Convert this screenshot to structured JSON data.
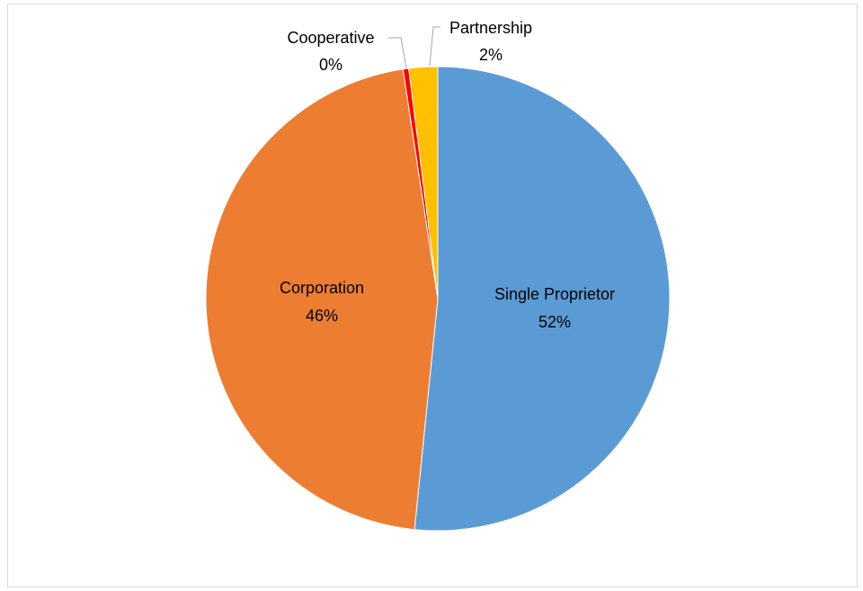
{
  "chart_data": {
    "type": "pie",
    "title": "",
    "start_angle_deg": 0,
    "direction": "clockwise",
    "legend": "none",
    "slices": [
      {
        "name": "Single Proprietor",
        "value": 51.6,
        "label": "52%",
        "color": "#5b9bd5"
      },
      {
        "name": "Corporation",
        "value": 46.0,
        "label": "46%",
        "color": "#ed7d31"
      },
      {
        "name": "Cooperative",
        "value": 0.4,
        "label": "0%",
        "color": "#ff0000"
      },
      {
        "name": "Partnership",
        "value": 2.0,
        "label": "2%",
        "color": "#ffc000"
      }
    ]
  }
}
